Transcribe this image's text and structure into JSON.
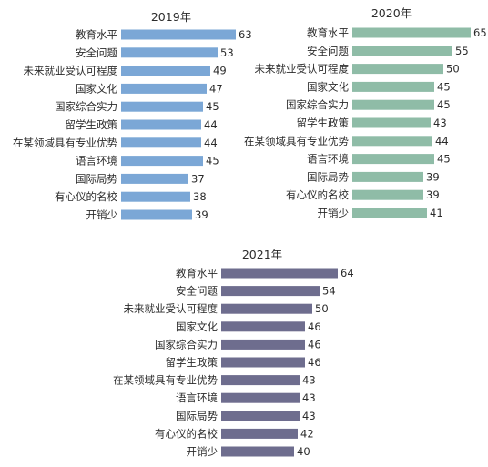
{
  "chart_data": [
    {
      "type": "bar",
      "orientation": "horizontal",
      "title": "2019年",
      "color": "#7ba7d6",
      "categories": [
        "教育水平",
        "安全问题",
        "未来就业受认可程度",
        "国家文化",
        "国家综合实力",
        "留学生政策",
        "在某领域具有专业优势",
        "语言环境",
        "国际局势",
        "有心仪的名校",
        "开销少"
      ],
      "values": [
        63,
        53,
        49,
        47,
        45,
        44,
        44,
        45,
        37,
        38,
        39
      ],
      "xlim": [
        0,
        66
      ],
      "grid": false,
      "legend": "none"
    },
    {
      "type": "bar",
      "orientation": "horizontal",
      "title": "2020年",
      "color": "#8fbca7",
      "categories": [
        "教育水平",
        "安全问题",
        "未来就业受认可程度",
        "国家文化",
        "国家综合实力",
        "留学生政策",
        "在某领域具有专业优势",
        "语言环境",
        "国际局势",
        "有心仪的名校",
        "开销少"
      ],
      "values": [
        65,
        55,
        50,
        45,
        45,
        43,
        44,
        45,
        39,
        39,
        41
      ],
      "xlim": [
        0,
        66
      ],
      "grid": false,
      "legend": "none"
    },
    {
      "type": "bar",
      "orientation": "horizontal",
      "title": "2021年",
      "color": "#6e6d8e",
      "categories": [
        "教育水平",
        "安全问题",
        "未来就业受认可程度",
        "国家文化",
        "国家综合实力",
        "留学生政策",
        "在某领域具有专业优势",
        "语言环境",
        "国际局势",
        "有心仪的名校",
        "开销少"
      ],
      "values": [
        64,
        54,
        50,
        46,
        46,
        46,
        43,
        43,
        43,
        42,
        40
      ],
      "xlim": [
        0,
        66
      ],
      "grid": false,
      "legend": "none"
    }
  ]
}
